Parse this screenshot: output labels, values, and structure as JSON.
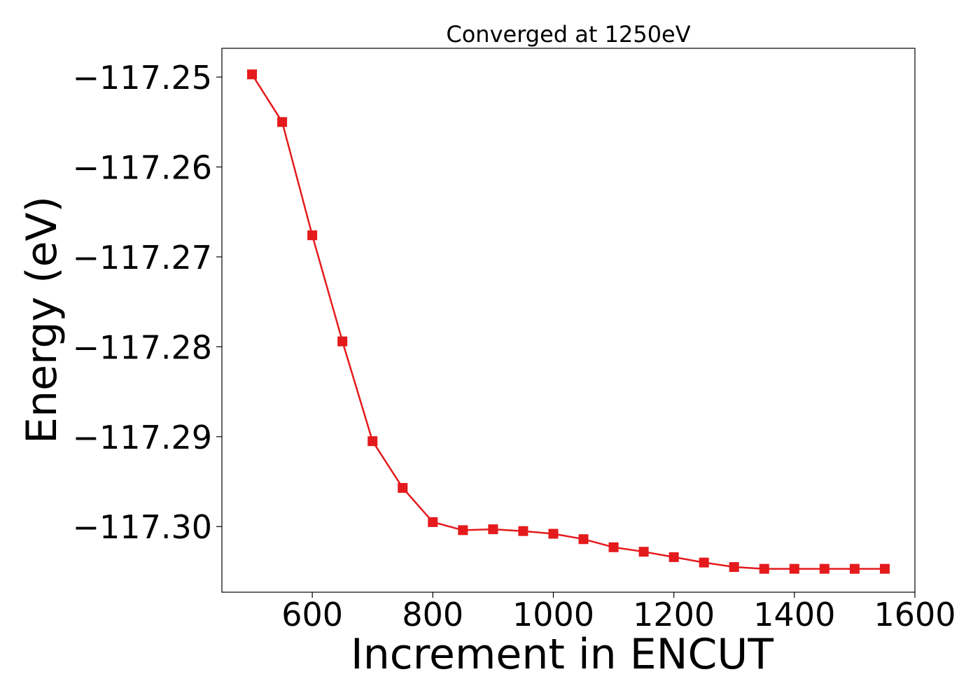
{
  "chart_data": {
    "type": "line",
    "title": "Converged at 1250eV",
    "xlabel": "Increment in ENCUT",
    "ylabel": "Energy (eV)",
    "xlim": [
      450,
      1600
    ],
    "ylim": [
      -117.3073,
      -117.2468
    ],
    "xticks": [
      600,
      800,
      1000,
      1200,
      1400,
      1600
    ],
    "xtick_labels": [
      "600",
      "800",
      "1000",
      "1200",
      "1400",
      "1600"
    ],
    "yticks": [
      -117.25,
      -117.26,
      -117.27,
      -117.28,
      -117.29,
      -117.3
    ],
    "ytick_labels": [
      "−117.25",
      "−117.26",
      "−117.27",
      "−117.28",
      "−117.29",
      "−117.30"
    ],
    "grid": false,
    "series": [
      {
        "color": "#e41a1c",
        "marker": "square",
        "x": [
          500,
          550,
          600,
          650,
          700,
          750,
          800,
          850,
          900,
          950,
          1000,
          1050,
          1100,
          1150,
          1200,
          1250,
          1300,
          1350,
          1400,
          1450,
          1500,
          1550
        ],
        "y": [
          -117.2497,
          -117.255,
          -117.2676,
          -117.2794,
          -117.2905,
          -117.2957,
          -117.2995,
          -117.3004,
          -117.3003,
          -117.3005,
          -117.3008,
          -117.3014,
          -117.3023,
          -117.3028,
          -117.3034,
          -117.304,
          -117.3045,
          -117.3047,
          -117.3047,
          -117.3047,
          -117.3047,
          -117.3047
        ]
      }
    ]
  }
}
